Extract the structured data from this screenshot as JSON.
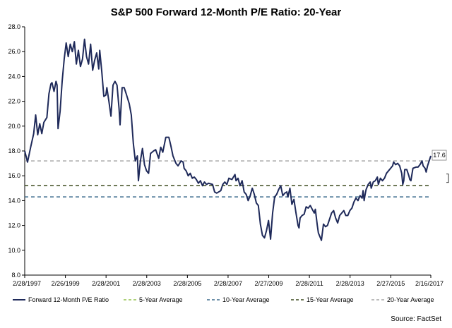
{
  "chart_data": {
    "type": "line",
    "title": "S&P 500 Forward 12-Month P/E Ratio: 20-Year",
    "xlabel": "",
    "ylabel": "",
    "ylim": [
      8.0,
      28.0
    ],
    "yticks": [
      "8.0",
      "10.0",
      "12.0",
      "14.0",
      "16.0",
      "18.0",
      "20.0",
      "22.0",
      "24.0",
      "26.0",
      "28.0"
    ],
    "xlim": [
      1997.16,
      2017.13
    ],
    "xticks": [
      {
        "label": "2/28/1997",
        "t": 1997.16
      },
      {
        "label": "2/26/1999",
        "t": 1999.16
      },
      {
        "label": "2/28/2001",
        "t": 2001.16
      },
      {
        "label": "2/28/2003",
        "t": 2003.16
      },
      {
        "label": "2/28/2005",
        "t": 2005.16
      },
      {
        "label": "2/28/2007",
        "t": 2007.16
      },
      {
        "label": "2/27/2009",
        "t": 2009.16
      },
      {
        "label": "2/28/2011",
        "t": 2011.16
      },
      {
        "label": "2/28/2013",
        "t": 2013.16
      },
      {
        "label": "2/27/2015",
        "t": 2015.16
      },
      {
        "label": "2/16/2017",
        "t": 2017.13
      }
    ],
    "series": [
      {
        "name": "Forward 12-Month P/E Ratio",
        "color": "#1f2a5a",
        "points": [
          [
            1997.16,
            18.0
          ],
          [
            1997.3,
            17.1
          ],
          [
            1997.45,
            18.3
          ],
          [
            1997.6,
            19.4
          ],
          [
            1997.7,
            20.9
          ],
          [
            1997.8,
            19.3
          ],
          [
            1997.9,
            20.2
          ],
          [
            1998.0,
            19.4
          ],
          [
            1998.1,
            20.3
          ],
          [
            1998.25,
            20.7
          ],
          [
            1998.35,
            22.6
          ],
          [
            1998.45,
            23.4
          ],
          [
            1998.5,
            23.5
          ],
          [
            1998.6,
            22.8
          ],
          [
            1998.7,
            23.6
          ],
          [
            1998.75,
            23.3
          ],
          [
            1998.8,
            19.8
          ],
          [
            1998.9,
            21.2
          ],
          [
            1999.0,
            23.6
          ],
          [
            1999.1,
            25.4
          ],
          [
            1999.2,
            26.7
          ],
          [
            1999.3,
            25.6
          ],
          [
            1999.4,
            26.6
          ],
          [
            1999.5,
            26.0
          ],
          [
            1999.6,
            26.8
          ],
          [
            1999.7,
            25.0
          ],
          [
            1999.8,
            26.1
          ],
          [
            1999.9,
            24.8
          ],
          [
            2000.0,
            25.4
          ],
          [
            2000.1,
            27.0
          ],
          [
            2000.2,
            25.6
          ],
          [
            2000.3,
            25.0
          ],
          [
            2000.4,
            26.6
          ],
          [
            2000.5,
            24.5
          ],
          [
            2000.6,
            25.3
          ],
          [
            2000.7,
            25.9
          ],
          [
            2000.8,
            24.6
          ],
          [
            2000.85,
            26.1
          ],
          [
            2000.95,
            24.4
          ],
          [
            2001.05,
            22.4
          ],
          [
            2001.15,
            22.5
          ],
          [
            2001.2,
            23.1
          ],
          [
            2001.3,
            22.0
          ],
          [
            2001.4,
            20.8
          ],
          [
            2001.5,
            23.3
          ],
          [
            2001.6,
            23.6
          ],
          [
            2001.7,
            23.3
          ],
          [
            2001.8,
            21.4
          ],
          [
            2001.85,
            20.1
          ],
          [
            2001.95,
            23.1
          ],
          [
            2002.05,
            23.1
          ],
          [
            2002.15,
            22.6
          ],
          [
            2002.3,
            21.8
          ],
          [
            2002.4,
            20.9
          ],
          [
            2002.5,
            18.6
          ],
          [
            2002.6,
            17.2
          ],
          [
            2002.7,
            17.6
          ],
          [
            2002.75,
            15.6
          ],
          [
            2002.85,
            17.2
          ],
          [
            2002.95,
            18.2
          ],
          [
            2003.05,
            16.9
          ],
          [
            2003.15,
            16.4
          ],
          [
            2003.25,
            16.2
          ],
          [
            2003.35,
            17.8
          ],
          [
            2003.5,
            18.0
          ],
          [
            2003.6,
            18.1
          ],
          [
            2003.75,
            17.4
          ],
          [
            2003.85,
            18.3
          ],
          [
            2003.95,
            17.9
          ],
          [
            2004.1,
            19.1
          ],
          [
            2004.25,
            19.1
          ],
          [
            2004.35,
            18.4
          ],
          [
            2004.45,
            17.6
          ],
          [
            2004.6,
            17.0
          ],
          [
            2004.7,
            16.8
          ],
          [
            2004.85,
            17.2
          ],
          [
            2004.95,
            17.1
          ],
          [
            2005.0,
            16.6
          ],
          [
            2005.1,
            16.4
          ],
          [
            2005.2,
            16.0
          ],
          [
            2005.3,
            16.2
          ],
          [
            2005.4,
            15.8
          ],
          [
            2005.5,
            15.9
          ],
          [
            2005.6,
            15.7
          ],
          [
            2005.7,
            15.4
          ],
          [
            2005.8,
            15.6
          ],
          [
            2005.9,
            15.2
          ],
          [
            2006.0,
            15.5
          ],
          [
            2006.1,
            15.3
          ],
          [
            2006.2,
            15.4
          ],
          [
            2006.4,
            15.3
          ],
          [
            2006.5,
            14.7
          ],
          [
            2006.6,
            14.6
          ],
          [
            2006.8,
            14.8
          ],
          [
            2006.9,
            15.3
          ],
          [
            2007.0,
            15.5
          ],
          [
            2007.1,
            15.3
          ],
          [
            2007.2,
            15.8
          ],
          [
            2007.35,
            15.7
          ],
          [
            2007.5,
            16.1
          ],
          [
            2007.55,
            15.6
          ],
          [
            2007.65,
            15.8
          ],
          [
            2007.75,
            15.2
          ],
          [
            2007.85,
            15.6
          ],
          [
            2007.95,
            14.7
          ],
          [
            2008.05,
            14.5
          ],
          [
            2008.15,
            14.0
          ],
          [
            2008.25,
            14.4
          ],
          [
            2008.35,
            15.0
          ],
          [
            2008.45,
            14.5
          ],
          [
            2008.55,
            13.8
          ],
          [
            2008.65,
            13.6
          ],
          [
            2008.75,
            12.1
          ],
          [
            2008.85,
            11.2
          ],
          [
            2008.95,
            11.0
          ],
          [
            2009.05,
            11.6
          ],
          [
            2009.15,
            12.4
          ],
          [
            2009.25,
            10.9
          ],
          [
            2009.35,
            13.0
          ],
          [
            2009.45,
            14.3
          ],
          [
            2009.55,
            14.5
          ],
          [
            2009.65,
            14.9
          ],
          [
            2009.75,
            15.2
          ],
          [
            2009.85,
            14.4
          ],
          [
            2009.95,
            14.6
          ],
          [
            2010.05,
            14.7
          ],
          [
            2010.1,
            14.3
          ],
          [
            2010.2,
            15.0
          ],
          [
            2010.3,
            13.7
          ],
          [
            2010.4,
            14.1
          ],
          [
            2010.5,
            13.0
          ],
          [
            2010.6,
            12.0
          ],
          [
            2010.65,
            11.8
          ],
          [
            2010.7,
            12.6
          ],
          [
            2010.8,
            12.8
          ],
          [
            2010.9,
            12.9
          ],
          [
            2011.0,
            13.5
          ],
          [
            2011.1,
            13.4
          ],
          [
            2011.2,
            13.6
          ],
          [
            2011.3,
            13.3
          ],
          [
            2011.4,
            13.0
          ],
          [
            2011.45,
            13.3
          ],
          [
            2011.55,
            12.0
          ],
          [
            2011.6,
            11.4
          ],
          [
            2011.7,
            11.0
          ],
          [
            2011.75,
            10.8
          ],
          [
            2011.85,
            12.1
          ],
          [
            2011.95,
            11.9
          ],
          [
            2012.05,
            12.0
          ],
          [
            2012.15,
            12.5
          ],
          [
            2012.25,
            13.0
          ],
          [
            2012.35,
            13.2
          ],
          [
            2012.45,
            12.6
          ],
          [
            2012.55,
            12.2
          ],
          [
            2012.65,
            12.8
          ],
          [
            2012.75,
            13.0
          ],
          [
            2012.85,
            13.2
          ],
          [
            2012.95,
            12.8
          ],
          [
            2013.05,
            12.8
          ],
          [
            2013.15,
            13.2
          ],
          [
            2013.25,
            13.4
          ],
          [
            2013.35,
            13.9
          ],
          [
            2013.45,
            14.2
          ],
          [
            2013.55,
            14.0
          ],
          [
            2013.65,
            14.4
          ],
          [
            2013.75,
            14.2
          ],
          [
            2013.8,
            14.8
          ],
          [
            2013.85,
            14.0
          ],
          [
            2013.9,
            14.5
          ],
          [
            2013.95,
            14.9
          ],
          [
            2014.05,
            15.3
          ],
          [
            2014.15,
            15.5
          ],
          [
            2014.2,
            15.0
          ],
          [
            2014.3,
            15.5
          ],
          [
            2014.4,
            15.6
          ],
          [
            2014.5,
            15.9
          ],
          [
            2014.55,
            15.3
          ],
          [
            2014.65,
            15.8
          ],
          [
            2014.75,
            15.6
          ],
          [
            2014.85,
            15.8
          ],
          [
            2014.95,
            16.2
          ],
          [
            2015.05,
            16.4
          ],
          [
            2015.15,
            16.6
          ],
          [
            2015.25,
            16.8
          ],
          [
            2015.3,
            17.1
          ],
          [
            2015.4,
            16.9
          ],
          [
            2015.5,
            17.0
          ],
          [
            2015.6,
            16.8
          ],
          [
            2015.7,
            16.2
          ],
          [
            2015.75,
            15.3
          ],
          [
            2015.8,
            15.6
          ],
          [
            2015.85,
            16.5
          ],
          [
            2015.95,
            16.5
          ],
          [
            2016.05,
            16.0
          ],
          [
            2016.1,
            15.7
          ],
          [
            2016.15,
            15.6
          ],
          [
            2016.25,
            16.6
          ],
          [
            2016.4,
            16.7
          ],
          [
            2016.5,
            16.7
          ],
          [
            2016.6,
            16.9
          ],
          [
            2016.7,
            17.2
          ],
          [
            2016.75,
            16.8
          ],
          [
            2016.85,
            16.6
          ],
          [
            2016.9,
            16.3
          ],
          [
            2016.97,
            16.8
          ],
          [
            2017.03,
            17.1
          ],
          [
            2017.13,
            17.6
          ]
        ]
      },
      {
        "name": "5-Year Average",
        "color": "#92c14a",
        "dash": "5,4",
        "value": 15.2
      },
      {
        "name": "10-Year Average",
        "color": "#3b6a8c",
        "dash": "5,4",
        "value": 14.3
      },
      {
        "name": "15-Year Average",
        "color": "#3d4a1e",
        "dash": "5,4",
        "value": 15.2
      },
      {
        "name": "20-Year Average",
        "color": "#a6a6a6",
        "dash": "5,4",
        "value": 17.2
      }
    ],
    "annotations": [
      {
        "text": "17.6"
      }
    ],
    "source": "Source: FactSet",
    "grid": false,
    "legend": "bottom"
  }
}
